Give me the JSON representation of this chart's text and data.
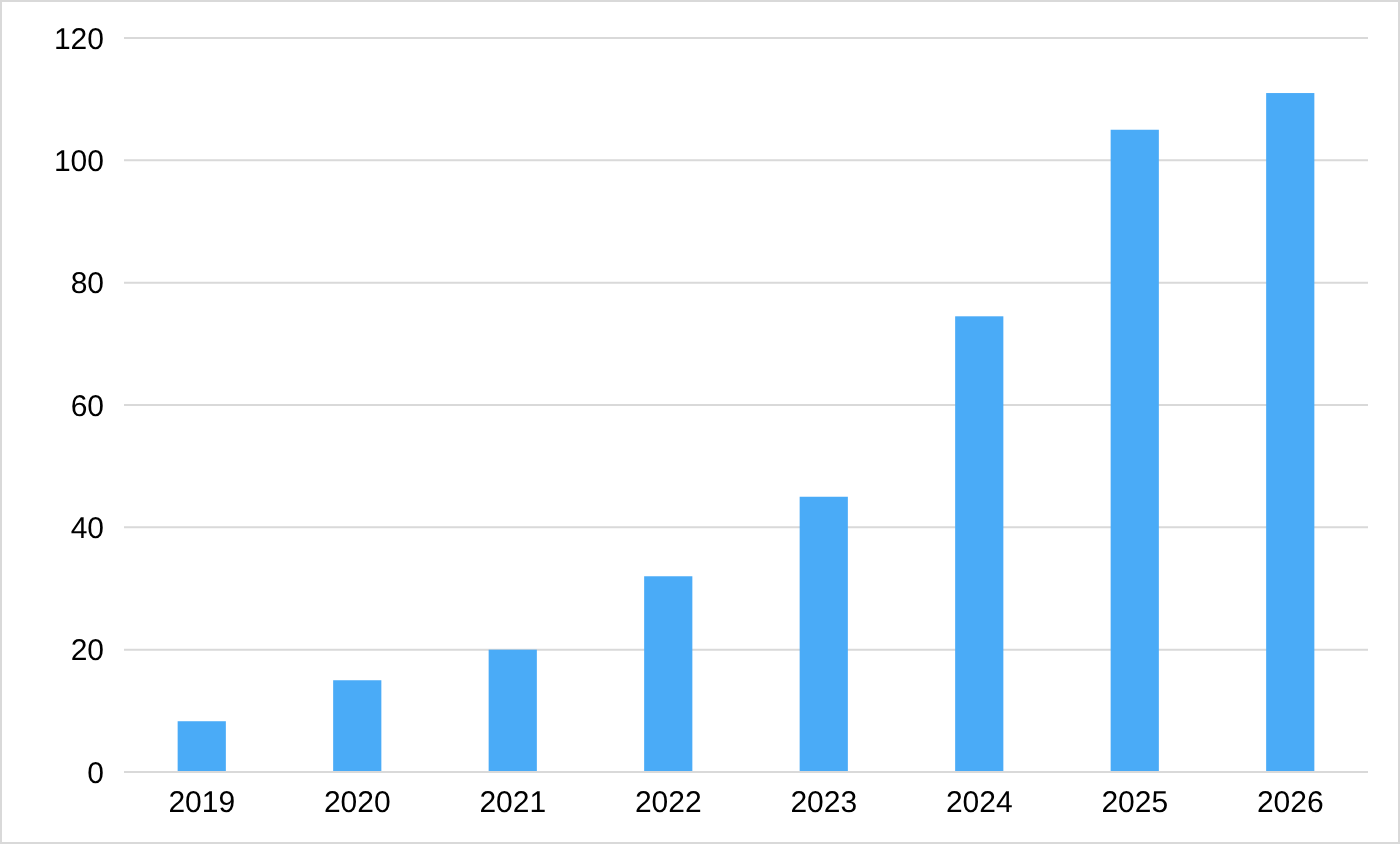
{
  "chart_data": {
    "type": "bar",
    "categories": [
      "2019",
      "2020",
      "2021",
      "2022",
      "2023",
      "2024",
      "2025",
      "2026"
    ],
    "values": [
      8.3,
      15,
      20,
      32,
      45,
      74.5,
      105,
      111
    ],
    "color": "#4aabf7",
    "ylim": [
      0,
      120
    ],
    "yticks": [
      0,
      20,
      40,
      60,
      80,
      100,
      120
    ],
    "grid": "y"
  }
}
